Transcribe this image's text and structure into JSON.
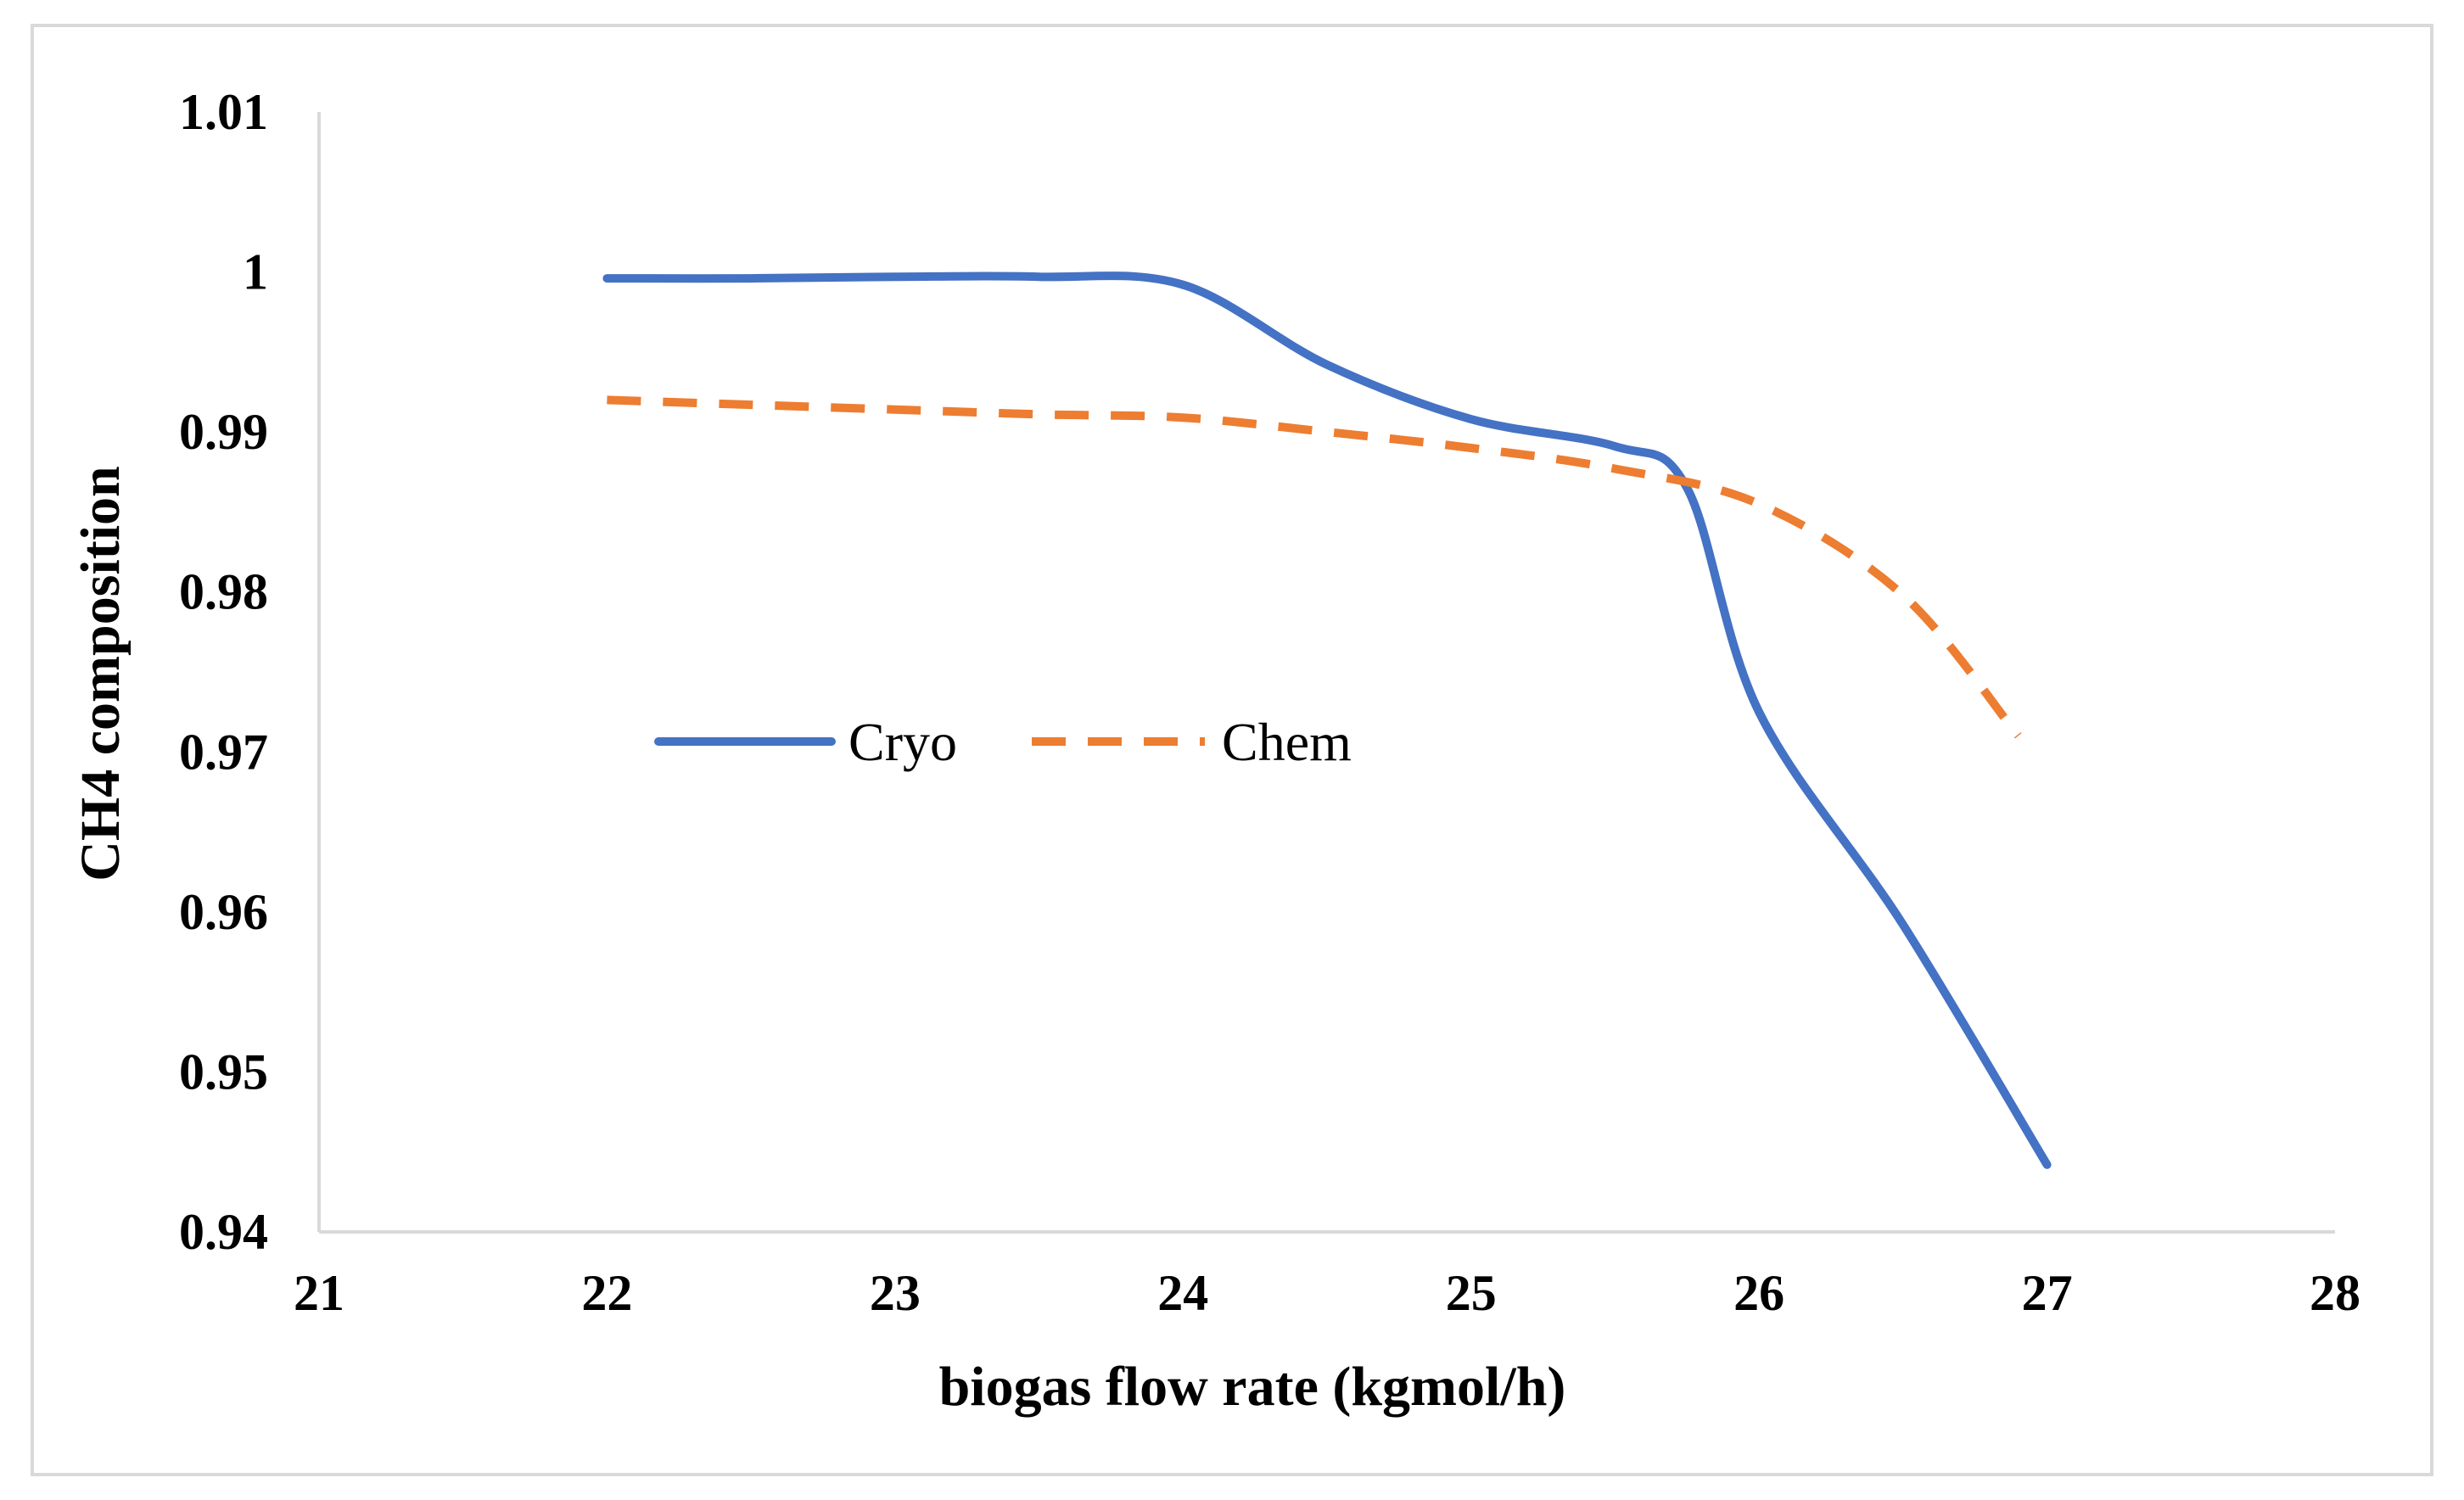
{
  "chart_data": {
    "type": "line",
    "title": "",
    "xlabel": "biogas flow rate (kgmol/h)",
    "ylabel": "CH4 composition",
    "xlim": [
      21,
      28
    ],
    "ylim": [
      0.94,
      1.01
    ],
    "x_ticks": [
      "21",
      "22",
      "23",
      "24",
      "25",
      "26",
      "27",
      "28"
    ],
    "y_ticks": [
      "0.94",
      "0.95",
      "0.96",
      "0.97",
      "0.98",
      "0.99",
      "1",
      "1.01"
    ],
    "legend_position": "center-left",
    "series": [
      {
        "name": "Cryo",
        "color": "#4472c4",
        "style": "solid",
        "x": [
          22,
          22.5,
          23,
          23.5,
          24,
          24.5,
          25,
          25.5,
          25.75,
          26,
          26.5,
          27
        ],
        "y": [
          0.9996,
          0.9996,
          0.9997,
          0.9997,
          0.9992,
          0.9942,
          0.9908,
          0.9891,
          0.9865,
          0.9725,
          0.9592,
          0.9442
        ]
      },
      {
        "name": "Chem",
        "color": "#ed7d31",
        "style": "dashed",
        "x": [
          22,
          22.5,
          23,
          23.5,
          24,
          24.5,
          25,
          25.5,
          26,
          26.5,
          26.9
        ],
        "y": [
          0.992,
          0.9917,
          0.9914,
          0.9911,
          0.9909,
          0.99,
          0.989,
          0.9877,
          0.9855,
          0.9798,
          0.971
        ]
      }
    ]
  }
}
